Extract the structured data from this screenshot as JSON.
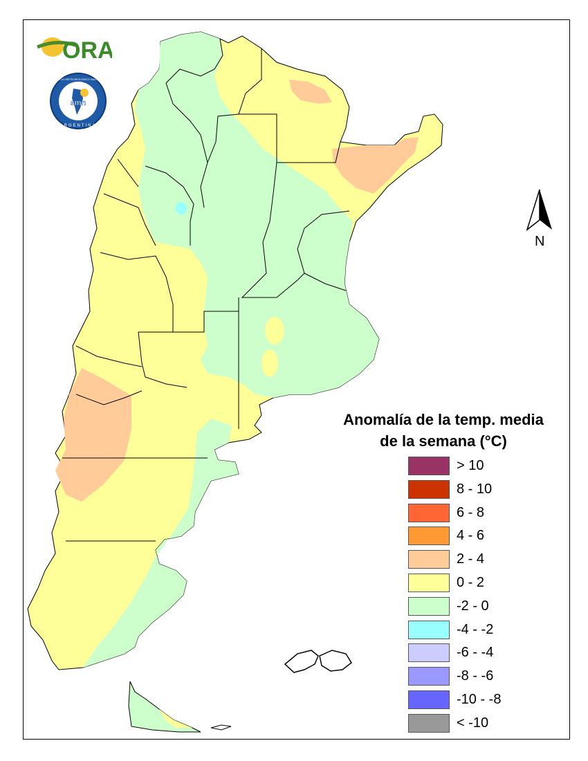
{
  "legend": {
    "title_line1": "Anomalía de la temp. media",
    "title_line2": "de la semana (°C)",
    "items": [
      {
        "label": "> 10",
        "color": "#993366"
      },
      {
        "label": "8 - 10",
        "color": "#CC3300"
      },
      {
        "label": "6 - 8",
        "color": "#FF6633"
      },
      {
        "label": "4 - 6",
        "color": "#FF9933"
      },
      {
        "label": "2 - 4",
        "color": "#FFCC99"
      },
      {
        "label": "0 - 2",
        "color": "#FFFF99"
      },
      {
        "label": "-2 - 0",
        "color": "#CCFFCC"
      },
      {
        "label": "-4 - -2",
        "color": "#99FFFF"
      },
      {
        "label": "-6 - -4",
        "color": "#CCCCFF"
      },
      {
        "label": "-8 - -6",
        "color": "#9999FF"
      },
      {
        "label": "-10 - -8",
        "color": "#6666FF"
      },
      {
        "label": "< -10",
        "color": "#999999"
      }
    ]
  },
  "north_arrow": {
    "label": "N"
  },
  "logos": {
    "ora_text": "ORA",
    "smn_ring_text": "SERVICIO METEOROLOGICO NACIONAL",
    "smn_country": "ARGENTINA",
    "smn_center": "smn"
  },
  "colors": {
    "warm": "#FFCC99",
    "neutral_warm": "#FFFF99",
    "neutral_cool": "#CCFFCC",
    "cool": "#99FFFF",
    "border": "#000000"
  }
}
